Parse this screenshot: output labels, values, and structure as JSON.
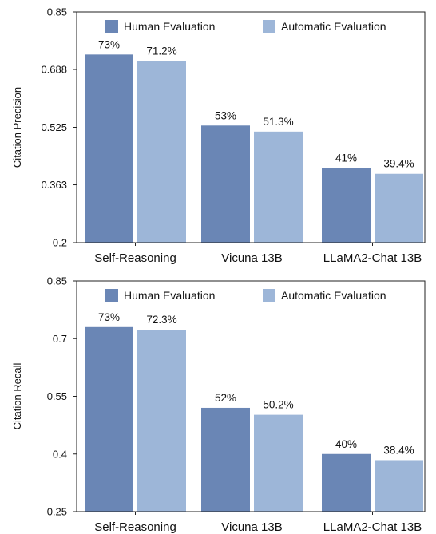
{
  "chart_data": [
    {
      "type": "bar",
      "ylabel": "Citation Precision",
      "xlabel": "",
      "ylim": [
        0.2,
        0.85
      ],
      "yticks": [
        "0.2",
        "0.363",
        "0.525",
        "0.688",
        "0.85"
      ],
      "grid": false,
      "legend_position": "top",
      "categories": [
        "Self-Reasoning",
        "Vicuna 13B",
        "LLaMA2-Chat 13B"
      ],
      "series": [
        {
          "name": "Human Evaluation",
          "color": "#6a86b5",
          "values": [
            0.73,
            0.53,
            0.41
          ],
          "labels": [
            "73%",
            "53%",
            "41%"
          ]
        },
        {
          "name": "Automatic Evaluation",
          "color": "#9db6d8",
          "values": [
            0.712,
            0.513,
            0.394
          ],
          "labels": [
            "71.2%",
            "51.3%",
            "39.4%"
          ]
        }
      ]
    },
    {
      "type": "bar",
      "ylabel": "Citation Recall",
      "xlabel": "",
      "ylim": [
        0.25,
        0.85
      ],
      "yticks": [
        "0.25",
        "0.4",
        "0.55",
        "0.7",
        "0.85"
      ],
      "grid": false,
      "legend_position": "top",
      "categories": [
        "Self-Reasoning",
        "Vicuna 13B",
        "LLaMA2-Chat 13B"
      ],
      "series": [
        {
          "name": "Human Evaluation",
          "color": "#6a86b5",
          "values": [
            0.73,
            0.52,
            0.4
          ],
          "labels": [
            "73%",
            "52%",
            "40%"
          ]
        },
        {
          "name": "Automatic Evaluation",
          "color": "#9db6d8",
          "values": [
            0.723,
            0.502,
            0.384
          ],
          "labels": [
            "72.3%",
            "50.2%",
            "38.4%"
          ]
        }
      ]
    }
  ]
}
